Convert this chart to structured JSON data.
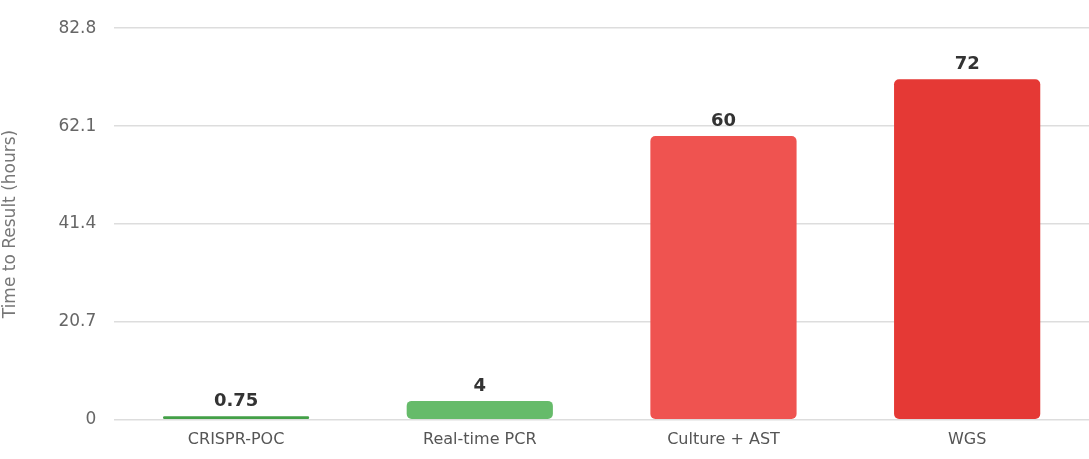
{
  "chart_data": {
    "type": "bar",
    "ylabel": "Time to Result (hours)",
    "categories": [
      "CRISPR-POC",
      "Real-time PCR",
      "Culture + AST",
      "WGS"
    ],
    "values": [
      0.75,
      4,
      60,
      72
    ],
    "colors": [
      "#43a047",
      "#66bb6a",
      "#ef5350",
      "#e53935"
    ],
    "ylim": [
      0,
      82.8
    ],
    "yticks": [
      0,
      20.7,
      41.4,
      62.1,
      82.8
    ],
    "grid": "y",
    "data_labels": true,
    "legend": false
  }
}
